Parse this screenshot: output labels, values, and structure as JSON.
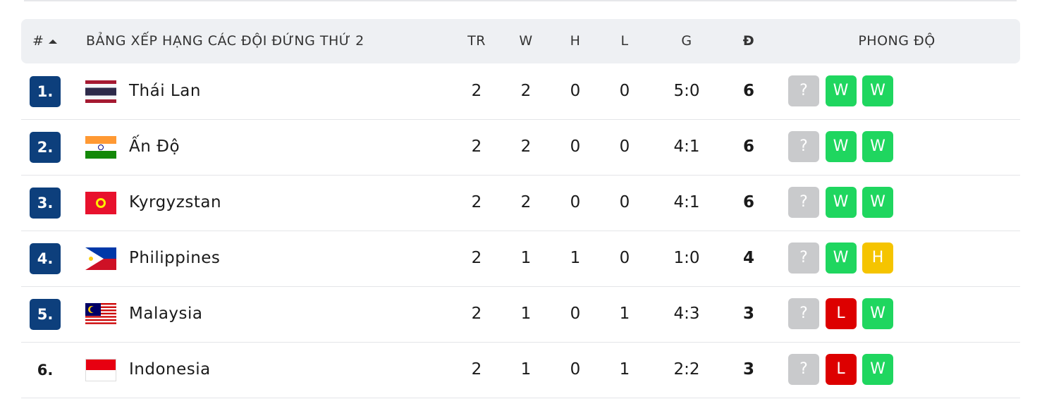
{
  "header": {
    "rank": "#",
    "team": "BẢNG XẾP HẠNG CÁC ĐỘI ĐỨNG THỨ 2",
    "played": "TR",
    "won": "W",
    "drawn": "H",
    "lost": "L",
    "goals": "G",
    "points": "Đ",
    "form": "PHONG ĐỘ"
  },
  "rows": [
    {
      "rank": "1.",
      "team": "Thái Lan",
      "played": 2,
      "won": 2,
      "drawn": 0,
      "lost": 0,
      "goals": "5:0",
      "points": 6,
      "form": [
        {
          "result": "?",
          "color": "#c9cacc"
        },
        {
          "result": "W",
          "color": "#1fd65f"
        },
        {
          "result": "W",
          "color": "#1fd65f"
        }
      ]
    },
    {
      "rank": "2.",
      "team": "Ấn Độ",
      "played": 2,
      "won": 2,
      "drawn": 0,
      "lost": 0,
      "goals": "4:1",
      "points": 6,
      "form": [
        {
          "result": "?",
          "color": "#c9cacc"
        },
        {
          "result": "W",
          "color": "#1fd65f"
        },
        {
          "result": "W",
          "color": "#1fd65f"
        }
      ]
    },
    {
      "rank": "3.",
      "team": "Kyrgyzstan",
      "played": 2,
      "won": 2,
      "drawn": 0,
      "lost": 0,
      "goals": "4:1",
      "points": 6,
      "form": [
        {
          "result": "?",
          "color": "#c9cacc"
        },
        {
          "result": "W",
          "color": "#1fd65f"
        },
        {
          "result": "W",
          "color": "#1fd65f"
        }
      ]
    },
    {
      "rank": "4.",
      "team": "Philippines",
      "played": 2,
      "won": 1,
      "drawn": 1,
      "lost": 0,
      "goals": "1:0",
      "points": 4,
      "form": [
        {
          "result": "?",
          "color": "#c9cacc"
        },
        {
          "result": "W",
          "color": "#1fd65f"
        },
        {
          "result": "H",
          "color": "#f5c400"
        }
      ]
    },
    {
      "rank": "5.",
      "team": "Malaysia",
      "played": 2,
      "won": 1,
      "drawn": 0,
      "lost": 1,
      "goals": "4:3",
      "points": 3,
      "form": [
        {
          "result": "?",
          "color": "#c9cacc"
        },
        {
          "result": "L",
          "color": "#dd0000"
        },
        {
          "result": "W",
          "color": "#1fd65f"
        }
      ]
    },
    {
      "rank": "6.",
      "team": "Indonesia",
      "played": 2,
      "won": 1,
      "drawn": 0,
      "lost": 1,
      "goals": "2:2",
      "points": 3,
      "form": [
        {
          "result": "?",
          "color": "#c9cacc"
        },
        {
          "result": "L",
          "color": "#dd0000"
        },
        {
          "result": "W",
          "color": "#1fd65f"
        }
      ]
    }
  ]
}
